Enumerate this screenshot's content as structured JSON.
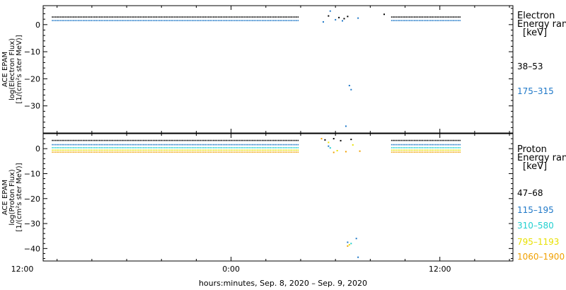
{
  "chart_data": [
    {
      "type": "scatter",
      "panel": "electron",
      "ylabel_lines": [
        "ACE EPAM",
        "log(Electron Flux)",
        "[1/(cm²s ster MeV)]"
      ],
      "ylim": [
        -40,
        7
      ],
      "yticks": [
        0,
        -10,
        -20,
        -30
      ],
      "ytick_labels": [
        "0",
        "−10",
        "−20",
        "−30"
      ],
      "legend_title_lines": [
        "Electron",
        "Energy ran",
        "[keV]"
      ],
      "series": [
        {
          "name": "38–53",
          "color": "#000000",
          "segments": [
            {
              "x": [
                -10.3,
                3.9
              ],
              "y": 2.8
            },
            {
              "x": [
                9.2,
                13.2
              ],
              "y": 2.8
            }
          ],
          "points": [
            {
              "x": 5.6,
              "y": 3.2
            },
            {
              "x": 6.2,
              "y": 2.6
            },
            {
              "x": 6.5,
              "y": 2.2
            },
            {
              "x": 6.7,
              "y": 3.0
            },
            {
              "x": 8.8,
              "y": 3.8
            }
          ]
        },
        {
          "name": "175–315",
          "color": "#1f78c8",
          "segments": [
            {
              "x": [
                -10.3,
                3.9
              ],
              "y": 1.5
            },
            {
              "x": [
                9.2,
                13.2
              ],
              "y": 1.5
            }
          ],
          "points": [
            {
              "x": 5.3,
              "y": 1.0
            },
            {
              "x": 5.7,
              "y": 5.0
            },
            {
              "x": 6.0,
              "y": 1.8
            },
            {
              "x": 6.4,
              "y": 1.4
            },
            {
              "x": 6.8,
              "y": -22.5
            },
            {
              "x": 6.9,
              "y": -24.0
            },
            {
              "x": 6.6,
              "y": -37.5
            },
            {
              "x": 7.3,
              "y": 2.4
            }
          ]
        }
      ]
    },
    {
      "type": "scatter",
      "panel": "proton",
      "ylabel_lines": [
        "ACE EPAM",
        "log(Proton Flux)",
        "[1/(cm²s ster MeV)]"
      ],
      "ylim": [
        -45,
        6
      ],
      "yticks": [
        0,
        -10,
        -20,
        -30,
        -40
      ],
      "ytick_labels": [
        "0",
        "−10",
        "−20",
        "−30",
        "−40"
      ],
      "legend_title_lines": [
        "Proton",
        "Energy ran",
        "[keV]"
      ],
      "series": [
        {
          "name": "47–68",
          "color": "#000000",
          "segments": [
            {
              "x": [
                -10.3,
                3.9
              ],
              "y": 3.3
            },
            {
              "x": [
                9.2,
                13.2
              ],
              "y": 3.3
            }
          ],
          "points": [
            {
              "x": 5.4,
              "y": 3.5
            },
            {
              "x": 5.9,
              "y": 4.0
            },
            {
              "x": 6.3,
              "y": 3.2
            },
            {
              "x": 6.9,
              "y": 3.7
            }
          ]
        },
        {
          "name": "115–195",
          "color": "#1f78c8",
          "segments": [
            {
              "x": [
                -10.3,
                3.9
              ],
              "y": 1.6
            },
            {
              "x": [
                9.2,
                13.2
              ],
              "y": 1.6
            }
          ],
          "points": [
            {
              "x": 5.6,
              "y": 1.0
            },
            {
              "x": 6.7,
              "y": -37.5
            },
            {
              "x": 7.2,
              "y": -36.0
            },
            {
              "x": 7.3,
              "y": -43.5
            }
          ]
        },
        {
          "name": "310–580",
          "color": "#22d0d0",
          "segments": [
            {
              "x": [
                -10.3,
                3.9
              ],
              "y": 0.4
            },
            {
              "x": [
                9.2,
                13.2
              ],
              "y": 0.4
            }
          ],
          "points": [
            {
              "x": 5.7,
              "y": 0.3
            },
            {
              "x": 6.9,
              "y": -38.0
            }
          ]
        },
        {
          "name": "795–1193",
          "color": "#e8e000",
          "segments": [
            {
              "x": [
                -10.3,
                3.9
              ],
              "y": -0.6
            },
            {
              "x": [
                9.2,
                13.2
              ],
              "y": -0.6
            }
          ],
          "points": [
            {
              "x": 5.6,
              "y": 2.5
            },
            {
              "x": 6.1,
              "y": -0.8
            },
            {
              "x": 7.0,
              "y": 1.5
            },
            {
              "x": 6.8,
              "y": -38.5
            }
          ]
        },
        {
          "name": "1060–1900",
          "color": "#f0a000",
          "segments": [
            {
              "x": [
                -10.3,
                3.9
              ],
              "y": -1.4
            },
            {
              "x": [
                9.2,
                13.2
              ],
              "y": -1.4
            }
          ],
          "points": [
            {
              "x": 5.2,
              "y": 4.0
            },
            {
              "x": 5.9,
              "y": -1.5
            },
            {
              "x": 6.6,
              "y": -1.2
            },
            {
              "x": 7.4,
              "y": -1.0
            },
            {
              "x": 6.7,
              "y": -39.0
            }
          ]
        }
      ]
    }
  ],
  "x_axis": {
    "xlim": [
      -10.8,
      16.2
    ],
    "major_ticks": [
      -12,
      0,
      12
    ],
    "tick_labels": [
      "12:00",
      "0:00",
      "12:00"
    ],
    "minor_step": 2,
    "title": "hours:minutes, Sep.  8, 2020 – Sep.  9, 2020"
  }
}
